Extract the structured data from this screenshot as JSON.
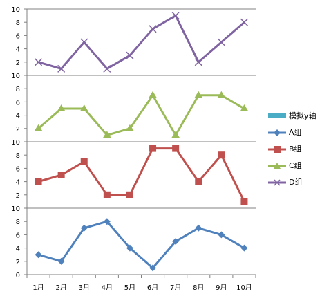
{
  "chart_data": {
    "type": "line",
    "title": "",
    "xlabel": "",
    "ylabel": "",
    "categories": [
      "1月",
      "2月",
      "3月",
      "4月",
      "5月",
      "6月",
      "7月",
      "8月",
      "9月",
      "10月"
    ],
    "ylim": [
      0,
      10
    ],
    "y_ticks": [
      "0",
      "2",
      "4",
      "6",
      "8",
      "10"
    ],
    "grid": "horizontal top line per panel",
    "legend_position": "right",
    "legend_entries": [
      "模拟y轴",
      "A组",
      "B组",
      "C组",
      "D组"
    ],
    "dummy_series": {
      "name": "模拟y轴",
      "color": "#4bacc6"
    },
    "series": [
      {
        "name": "A组",
        "color": "#4f81bd",
        "marker": "diamond",
        "values": [
          3,
          2,
          7,
          8,
          4,
          1,
          5,
          7,
          6,
          4
        ]
      },
      {
        "name": "B组",
        "color": "#c0504d",
        "marker": "square",
        "values": [
          4,
          5,
          7,
          2,
          2,
          9,
          9,
          4,
          8,
          1
        ]
      },
      {
        "name": "C组",
        "color": "#9bbb59",
        "marker": "triangle",
        "values": [
          2,
          5,
          5,
          1,
          2,
          7,
          1,
          7,
          7,
          5
        ]
      },
      {
        "name": "D组",
        "color": "#8064a2",
        "marker": "x",
        "values": [
          2,
          1,
          5,
          1,
          3,
          7,
          9,
          2,
          5,
          8
        ]
      }
    ]
  }
}
